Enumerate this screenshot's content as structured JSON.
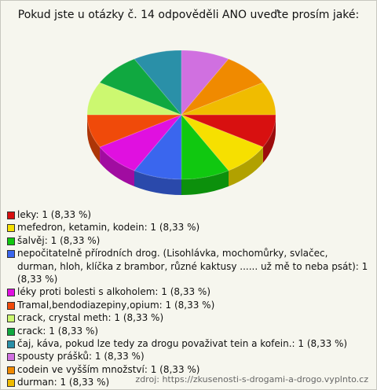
{
  "chart_data": {
    "type": "pie3d",
    "title": "Pokud jste u otázky č. 14 odpověděli ANO uveďte prosím jaké:",
    "categories": [
      "leky: 1 (8,33 %)",
      "mefedron, ketamin, kodein: 1 (8,33 %)",
      "šalvěj: 1 (8,33 %)",
      "nepočitatelně přírodních drog. (Lisohlávka, mochomůrky, svlačec, durman, hloh, klíčka z brambor, různé kaktusy ...... už mě to neba psát): 1 (8,33 %)",
      "léky proti bolesti s alkoholem: 1 (8,33 %)",
      "Tramal,bendodiazepiny,opium: 1 (8,33 %)",
      "crack, crystal meth: 1 (8,33 %)",
      "crack: 1 (8,33 %)",
      "čaj, káva, pokud lze tedy za drogu považivat tein a kofein.: 1 (8,33 %)",
      "spousty prášků: 1 (8,33 %)",
      "codein ve vyšším množství: 1 (8,33 %)",
      "durman: 1 (8,33 %)"
    ],
    "values": [
      1,
      1,
      1,
      1,
      1,
      1,
      1,
      1,
      1,
      1,
      1,
      1
    ],
    "colors": [
      "#d81010",
      "#f6e000",
      "#10c810",
      "#3a66ee",
      "#e010e0",
      "#f04a0a",
      "#ccf870",
      "#10a840",
      "#2a90a8",
      "#d070e0",
      "#f08a00",
      "#f0bc00"
    ],
    "source": "zdroj: https://zkusenosti-s-drogami-a-drogo.vyplnto.cz"
  }
}
